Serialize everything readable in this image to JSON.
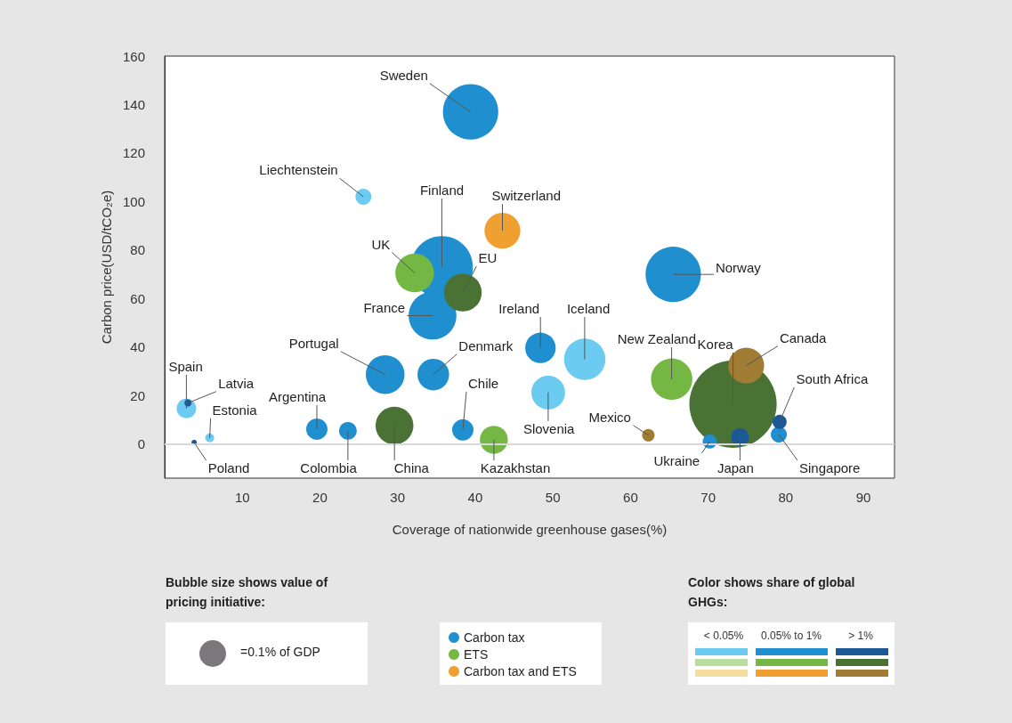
{
  "chart_data": {
    "type": "bubble",
    "xlabel": "Coverage of nationwide greenhouse gases(%)",
    "ylabel": "Carbon price(USD/tCO₂e)",
    "xlim": [
      0,
      94
    ],
    "xticks": [
      10,
      20,
      30,
      40,
      50,
      60,
      70,
      80,
      90
    ],
    "ylim": [
      -14,
      160
    ],
    "yticks": [
      0,
      20,
      40,
      60,
      80,
      100,
      120,
      140,
      160
    ],
    "grid": false,
    "legend": "bottom",
    "size_legend": [
      {
        "value": 0.1,
        "label": "=0.1% of GDP"
      }
    ],
    "ref_lines": [
      {
        "axis": "y",
        "value": 0,
        "label": null,
        "color": "#d9d9d9"
      }
    ],
    "series": [
      {
        "name": "Carbon tax",
        "color": "#1f8fcf",
        "x": [
          39.4,
          25.6,
          35.7,
          34.5,
          65.5,
          48.4,
          54.1,
          28.4,
          34.6,
          2.8,
          3.0,
          5.8,
          3.8,
          19.6,
          23.6,
          38.4,
          49.4,
          70.2,
          74.1,
          79.1,
          79.2
        ],
        "values": [
          137,
          102,
          73,
          53,
          70,
          39.7,
          35,
          28.7,
          28.7,
          14.7,
          17,
          2.6,
          0.7,
          6.2,
          5.5,
          5.9,
          21.3,
          1.1,
          2.9,
          4,
          9.2
        ],
        "sizes": [
          0.43,
          0.036,
          0.54,
          0.32,
          0.43,
          0.13,
          0.24,
          0.21,
          0.14,
          0.054,
          0.007,
          0.011,
          0.004,
          0.064,
          0.044,
          0.064,
          0.16,
          0.028,
          0.044,
          0.036,
          0.028
        ],
        "colors": [
          "#1f8fcf",
          "#6ccbf0",
          "#1f8fcf",
          "#1f8fcf",
          "#1f8fcf",
          "#1f8fcf",
          "#6ccbf0",
          "#1f8fcf",
          "#1f8fcf",
          "#6ccbf0",
          "#1c5796",
          "#6ccbf0",
          "#1c5796",
          "#1f8fcf",
          "#1f8fcf",
          "#1f8fcf",
          "#6ccbf0",
          "#1f8fcf",
          "#1c5796",
          "#1f8fcf",
          "#1c5796"
        ]
      },
      {
        "name": "ETS",
        "color": "#74b843",
        "x": [
          32.2,
          38.4,
          65.3,
          73.2,
          29.6,
          42.4
        ],
        "values": [
          70.6,
          62.5,
          26.8,
          16.5,
          7.7,
          1.8
        ],
        "sizes": [
          0.21,
          0.2,
          0.24,
          1.07,
          0.2,
          0.11
        ],
        "colors": [
          "#74b843",
          "#4a7234",
          "#74b843",
          "#4a7234",
          "#4a7234",
          "#74b843"
        ]
      },
      {
        "name": "Carbon tax and ETS",
        "color": "#f0a030",
        "x": [
          43.5,
          74.9,
          62.3
        ],
        "values": [
          88,
          32.4,
          3.7
        ],
        "sizes": [
          0.18,
          0.18,
          0.022
        ],
        "colors": [
          "#f0a030",
          "#a07c34",
          "#a07c34"
        ]
      }
    ],
    "annotations": [
      {
        "text": "Sweden",
        "x": 39.4,
        "y": 137
      },
      {
        "text": "Liechtenstein",
        "x": 25.6,
        "y": 102
      },
      {
        "text": "Finland",
        "x": 35.7,
        "y": 73
      },
      {
        "text": "France",
        "x": 34.5,
        "y": 53
      },
      {
        "text": "Norway",
        "x": 65.5,
        "y": 70
      },
      {
        "text": "Ireland",
        "x": 48.4,
        "y": 39.7
      },
      {
        "text": "Iceland",
        "x": 54.1,
        "y": 35
      },
      {
        "text": "Portugal",
        "x": 28.4,
        "y": 28.7
      },
      {
        "text": "Denmark",
        "x": 34.6,
        "y": 28.7
      },
      {
        "text": "Spain",
        "x": 2.8,
        "y": 14.7
      },
      {
        "text": "Latvia",
        "x": 3.0,
        "y": 17
      },
      {
        "text": "Estonia",
        "x": 5.8,
        "y": 2.6
      },
      {
        "text": "Poland",
        "x": 3.8,
        "y": 0.7
      },
      {
        "text": "Argentina",
        "x": 19.6,
        "y": 6.2
      },
      {
        "text": "Colombia",
        "x": 23.6,
        "y": 5.5
      },
      {
        "text": "Chile",
        "x": 38.4,
        "y": 5.9
      },
      {
        "text": "Slovenia",
        "x": 49.4,
        "y": 21.3
      },
      {
        "text": "Ukraine",
        "x": 70.2,
        "y": 1.1
      },
      {
        "text": "Japan",
        "x": 74.1,
        "y": 2.9
      },
      {
        "text": "Singapore",
        "x": 79.1,
        "y": 4
      },
      {
        "text": "South Africa",
        "x": 79.2,
        "y": 9.2
      },
      {
        "text": "UK",
        "x": 32.2,
        "y": 70.6
      },
      {
        "text": "EU",
        "x": 38.4,
        "y": 62.5
      },
      {
        "text": "New Zealand",
        "x": 65.3,
        "y": 26.8
      },
      {
        "text": "Korea",
        "x": 73.2,
        "y": 16.5
      },
      {
        "text": "China",
        "x": 29.6,
        "y": 7.7
      },
      {
        "text": "Kazakhstan",
        "x": 42.4,
        "y": 1.8
      },
      {
        "text": "Switzerland",
        "x": 43.5,
        "y": 88
      },
      {
        "text": "Canada",
        "x": 74.9,
        "y": 32.4
      },
      {
        "text": "Mexico",
        "x": 62.3,
        "y": 3.7
      },
      "Bubble size shows value of pricing initiative:",
      "Color shows share of global GHGs:",
      "< 0.05%",
      "0.05% to 1%",
      "> 1%"
    ]
  }
}
